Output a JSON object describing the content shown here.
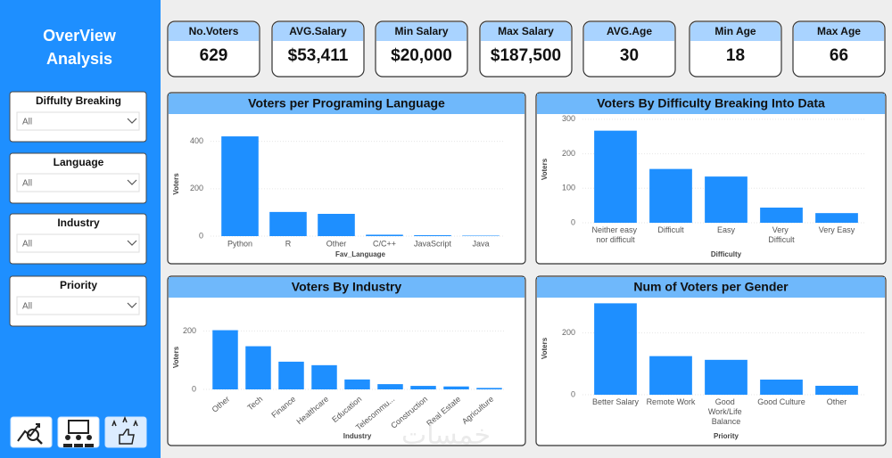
{
  "sidebar": {
    "title_lines": [
      "OverView",
      "Analysis"
    ],
    "filters": [
      {
        "label": "Diffulty Breaking",
        "value": "All"
      },
      {
        "label": "Language",
        "value": "All"
      },
      {
        "label": "Industry",
        "value": "All"
      },
      {
        "label": "Priority",
        "value": "All"
      }
    ]
  },
  "kpis": [
    {
      "label": "No.Voters",
      "value": "629"
    },
    {
      "label": "AVG.Salary",
      "value": "$53,411"
    },
    {
      "label": "Min Salary",
      "value": "$20,000"
    },
    {
      "label": "Max Salary",
      "value": "$187,500"
    },
    {
      "label": "AVG.Age",
      "value": "30"
    },
    {
      "label": "Min Age",
      "value": "18"
    },
    {
      "label": "Max Age",
      "value": "66"
    }
  ],
  "watermark": "خمسات",
  "chart_data": [
    {
      "type": "bar",
      "title": "Voters per Programing Language",
      "x_label": "Fav_Language",
      "y_label": "Voters",
      "categories": [
        "Python",
        "R",
        "Other",
        "C/C++",
        "JavaScript",
        "Java"
      ],
      "values": [
        421,
        102,
        94,
        6,
        4,
        2
      ],
      "color": "#1e8fff",
      "ylim": [
        0,
        440
      ],
      "yticks": [
        0,
        200,
        400
      ],
      "grid": true
    },
    {
      "type": "bar",
      "title": "Voters By Difficulty Breaking Into Data",
      "x_label": "Difficulty",
      "y_label": "Voters",
      "categories": [
        "Neither easy nor difficult",
        "Difficult",
        "Easy",
        "Very Difficult",
        "Very Easy"
      ],
      "values": [
        267,
        156,
        134,
        44,
        28
      ],
      "color": "#1e8fff",
      "ylim": [
        0,
        310
      ],
      "yticks": [
        0,
        100,
        200,
        300
      ],
      "grid": true
    },
    {
      "type": "bar",
      "title": "Voters By Industry",
      "x_label": "Industry",
      "y_label": "Voters",
      "categories": [
        "Other",
        "Tech",
        "Finance",
        "Healthcare",
        "Education",
        "Telecommu...",
        "Construction",
        "Real Estate",
        "Agriculture"
      ],
      "values": [
        203,
        148,
        95,
        83,
        34,
        18,
        12,
        10,
        5
      ],
      "color": "#1e8fff",
      "ylim": [
        0,
        220
      ],
      "yticks": [
        0,
        200
      ],
      "grid": true
    },
    {
      "type": "bar",
      "title": "Num of Voters per Gender",
      "x_label": "Priority",
      "y_label": "Voters",
      "categories": [
        "Better Salary",
        "Remote Work",
        "Good Work/Life Balance",
        "Good Culture",
        "Other"
      ],
      "values": [
        296,
        125,
        113,
        49,
        29
      ],
      "color": "#1e8fff",
      "ylim": [
        0,
        300
      ],
      "yticks": [
        0,
        200
      ],
      "grid": true
    }
  ]
}
